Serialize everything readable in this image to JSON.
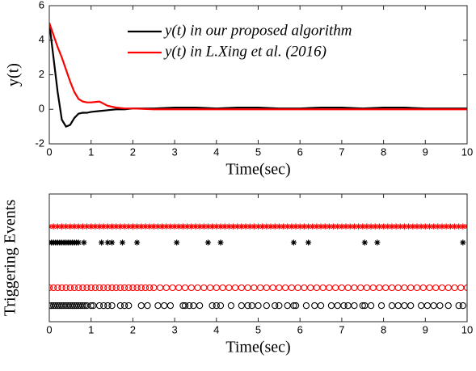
{
  "chart_data": [
    {
      "type": "line",
      "ylabel": "y(t)",
      "xlabel": "Time(sec)",
      "xlim": [
        0,
        10
      ],
      "ylim": [
        -2,
        6
      ],
      "xticks": [
        0,
        1,
        2,
        3,
        4,
        5,
        6,
        7,
        8,
        9,
        10
      ],
      "yticks": [
        -2,
        0,
        2,
        4,
        6
      ],
      "legend": "upper right",
      "x": [
        0,
        0.1,
        0.2,
        0.3,
        0.4,
        0.5,
        0.6,
        0.7,
        0.8,
        0.9,
        1,
        1.2,
        1.4,
        1.6,
        1.8,
        2,
        2.5,
        3,
        3.5,
        4,
        4.5,
        5,
        5.5,
        6,
        6.5,
        7,
        7.5,
        8,
        8.5,
        9,
        9.5,
        10
      ],
      "series": [
        {
          "name": "y(t) in our proposed algorithm",
          "color": "#000000",
          "values": [
            5,
            3,
            1,
            -0.6,
            -1,
            -0.9,
            -0.5,
            -0.25,
            -0.2,
            -0.2,
            -0.15,
            -0.1,
            -0.05,
            0,
            0,
            0.05,
            0.05,
            0.1,
            0.1,
            0.05,
            0.1,
            0.1,
            0.05,
            0.05,
            0.1,
            0.1,
            0.05,
            0.1,
            0.1,
            0.05,
            0.05,
            0.05
          ]
        },
        {
          "name": "y(t) in  L.Xing et al. (2016)",
          "color": "#ff0000",
          "values": [
            5,
            4.3,
            3.6,
            3,
            2.3,
            1.6,
            1,
            0.6,
            0.45,
            0.4,
            0.4,
            0.45,
            0.2,
            0.1,
            0.05,
            0.05,
            0,
            0,
            0,
            0,
            0,
            0,
            0,
            0,
            0,
            0,
            0,
            0,
            0,
            0,
            0,
            0
          ]
        }
      ]
    },
    {
      "type": "scatter",
      "ylabel": "Triggering Events",
      "xlabel": "Time(sec)",
      "xlim": [
        0,
        10
      ],
      "ylim": [
        0,
        5
      ],
      "xticks": [
        0,
        1,
        2,
        3,
        4,
        5,
        6,
        7,
        8,
        9,
        10
      ],
      "series": [
        {
          "marker": "star",
          "color": "#ff0000",
          "y": 3.73,
          "x": [
            0,
            0.1,
            0.2,
            0.3,
            0.4,
            0.5,
            0.6,
            0.7,
            0.8,
            0.9,
            1,
            1.1,
            1.2,
            1.3,
            1.4,
            1.5,
            1.6,
            1.7,
            1.8,
            1.9,
            2,
            2.1,
            2.2,
            2.3,
            2.4,
            2.5,
            2.6,
            2.7,
            2.8,
            2.9,
            3,
            3.1,
            3.2,
            3.3,
            3.4,
            3.5,
            3.6,
            3.7,
            3.8,
            3.9,
            4,
            4.1,
            4.2,
            4.3,
            4.4,
            4.5,
            4.6,
            4.7,
            4.8,
            4.9,
            5,
            5.1,
            5.2,
            5.3,
            5.4,
            5.5,
            5.6,
            5.7,
            5.8,
            5.9,
            6,
            6.1,
            6.2,
            6.3,
            6.4,
            6.5,
            6.6,
            6.7,
            6.8,
            6.9,
            7,
            7.1,
            7.2,
            7.3,
            7.4,
            7.5,
            7.6,
            7.7,
            7.8,
            7.9,
            8,
            8.1,
            8.2,
            8.3,
            8.4,
            8.5,
            8.6,
            8.7,
            8.8,
            8.9,
            9,
            9.1,
            9.2,
            9.3,
            9.4,
            9.5,
            9.6,
            9.7,
            9.8,
            9.9,
            10
          ]
        },
        {
          "marker": "star",
          "color": "#000000",
          "y": 3.1,
          "x": [
            0,
            0.05,
            0.1,
            0.15,
            0.2,
            0.25,
            0.3,
            0.35,
            0.4,
            0.45,
            0.5,
            0.55,
            0.6,
            0.65,
            0.7,
            0.83,
            1.25,
            1.4,
            1.5,
            1.75,
            2.1,
            3.05,
            3.8,
            4.1,
            5.85,
            6.2,
            7.55,
            7.85,
            9.9
          ]
        },
        {
          "marker": "circle",
          "color": "#ff0000",
          "y": 1.33,
          "x": [
            0,
            0.1,
            0.2,
            0.3,
            0.4,
            0.5,
            0.6,
            0.7,
            0.8,
            0.9,
            1,
            1.1,
            1.2,
            1.3,
            1.4,
            1.5,
            1.6,
            1.7,
            1.8,
            1.9,
            2,
            2.1,
            2.2,
            2.3,
            2.4,
            2.5,
            2.65,
            2.8,
            2.95,
            3.1,
            3.25,
            3.4,
            3.55,
            3.7,
            3.85,
            4,
            4.15,
            4.3,
            4.45,
            4.6,
            4.75,
            4.9,
            5.05,
            5.2,
            5.35,
            5.5,
            5.65,
            5.8,
            5.95,
            6.1,
            6.25,
            6.4,
            6.55,
            6.7,
            6.85,
            7,
            7.15,
            7.3,
            7.45,
            7.6,
            7.75,
            7.9,
            8.05,
            8.2,
            8.35,
            8.5,
            8.65,
            8.8,
            8.95,
            9.1,
            9.25,
            9.4,
            9.55,
            9.7,
            9.85,
            10
          ]
        },
        {
          "marker": "circle",
          "color": "#000000",
          "y": 0.63,
          "x": [
            0,
            0.05,
            0.1,
            0.15,
            0.2,
            0.25,
            0.3,
            0.35,
            0.4,
            0.45,
            0.5,
            0.55,
            0.6,
            0.65,
            0.7,
            0.75,
            0.8,
            0.85,
            0.9,
            1,
            1.05,
            1.2,
            1.3,
            1.4,
            1.5,
            1.7,
            1.8,
            1.9,
            2.2,
            2.35,
            2.6,
            2.75,
            2.9,
            3.2,
            3.25,
            3.35,
            3.45,
            3.6,
            3.9,
            4,
            4.1,
            4.35,
            4.6,
            4.75,
            4.85,
            5,
            5.2,
            5.4,
            5.5,
            5.7,
            5.85,
            5.9,
            6.15,
            6.35,
            6.5,
            6.75,
            6.9,
            7.05,
            7.15,
            7.3,
            7.5,
            7.55,
            7.7,
            7.95,
            8.2,
            8.35,
            8.5,
            8.65,
            8.9,
            9.05,
            9.2,
            9.35,
            9.55,
            9.8,
            9.9
          ]
        }
      ]
    }
  ]
}
